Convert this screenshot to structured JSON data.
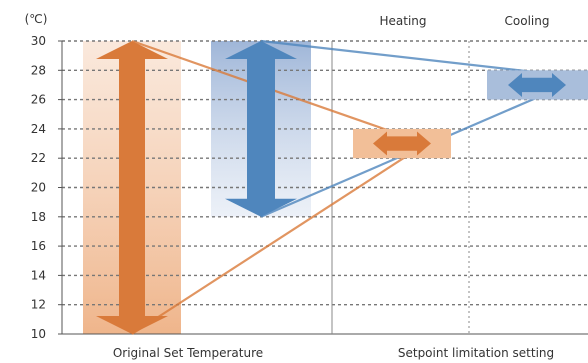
{
  "unit_label": "(℃)",
  "y_ticks": [
    30,
    28,
    26,
    24,
    22,
    20,
    18,
    16,
    14,
    12,
    10
  ],
  "y_range": [
    10,
    30
  ],
  "headers": {
    "heating": "Heating",
    "cooling": "Cooling"
  },
  "captions": {
    "left": "Original Set Temperature",
    "right": "Setpoint limitation setting"
  },
  "colors": {
    "heating_dark": "#d97a3a",
    "heating_light": "#f2bf98",
    "cooling_dark": "#4f86bd",
    "cooling_light": "#a9bedb",
    "grid": "#777777",
    "divider": "#888888"
  },
  "original": {
    "heating_range": [
      10,
      30
    ],
    "cooling_range": [
      18,
      30
    ]
  },
  "limited": {
    "heating_range": [
      22,
      24
    ],
    "cooling_range": [
      26,
      28
    ]
  }
}
